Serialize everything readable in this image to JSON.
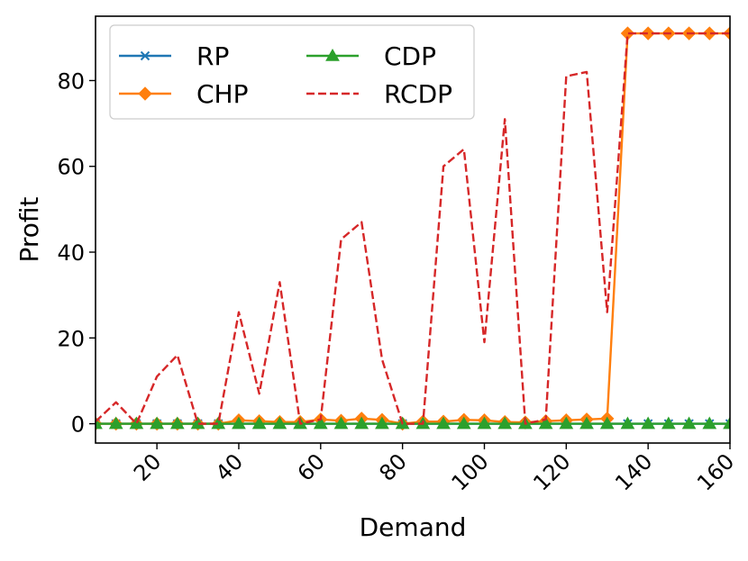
{
  "chart_data": {
    "type": "line",
    "title": "",
    "xlabel": "Demand",
    "ylabel": "Profit",
    "xlim": [
      5,
      160
    ],
    "ylim": [
      -4.5,
      95
    ],
    "xticks": [
      20,
      40,
      60,
      80,
      100,
      120,
      140,
      160
    ],
    "yticks": [
      0,
      20,
      40,
      60,
      80
    ],
    "grid": false,
    "legend_position": "top-left",
    "x": [
      5,
      10,
      15,
      20,
      25,
      30,
      35,
      40,
      45,
      50,
      55,
      60,
      65,
      70,
      75,
      80,
      85,
      90,
      95,
      100,
      105,
      110,
      115,
      120,
      125,
      130,
      135,
      140,
      145,
      150,
      155,
      160
    ],
    "series": [
      {
        "name": "RP",
        "color": "#1f77b4",
        "style": "solid",
        "marker": "x",
        "values": [
          0,
          0,
          0,
          0,
          0,
          0,
          0,
          0,
          0,
          0,
          0,
          0,
          0,
          0,
          0,
          0,
          0,
          0,
          0,
          0,
          0,
          0,
          0,
          0,
          0,
          0,
          0,
          0,
          0,
          0,
          0,
          0
        ]
      },
      {
        "name": "CHP",
        "color": "#ff7f0e",
        "style": "solid",
        "marker": "diamond",
        "values": [
          0,
          0,
          0,
          0,
          0,
          0,
          0,
          0.8,
          0.6,
          0.4,
          0.4,
          1,
          0.7,
          1.2,
          0.9,
          0,
          0.5,
          0.5,
          0.9,
          0.8,
          0.4,
          0.3,
          0.6,
          0.8,
          1,
          1.2,
          91,
          91,
          91,
          91,
          91,
          91
        ]
      },
      {
        "name": "CDP",
        "color": "#2ca02c",
        "style": "solid",
        "marker": "triangle",
        "values": [
          0,
          0,
          0,
          0,
          0,
          0,
          0,
          0,
          0,
          0,
          0,
          0,
          0,
          0,
          0,
          0,
          0,
          0,
          0,
          0,
          0,
          0,
          0,
          0,
          0,
          0,
          0,
          0,
          0,
          0,
          0,
          0
        ]
      },
      {
        "name": "RCDP",
        "color": "#d62728",
        "style": "dashed",
        "marker": "none",
        "values": [
          0.5,
          5,
          0,
          11,
          16,
          0,
          0,
          26,
          7,
          33,
          0,
          1,
          43,
          47,
          15,
          0,
          0,
          60,
          64,
          19,
          71,
          0,
          1,
          81,
          82,
          26,
          91,
          91,
          91,
          91,
          91,
          91
        ]
      }
    ]
  }
}
